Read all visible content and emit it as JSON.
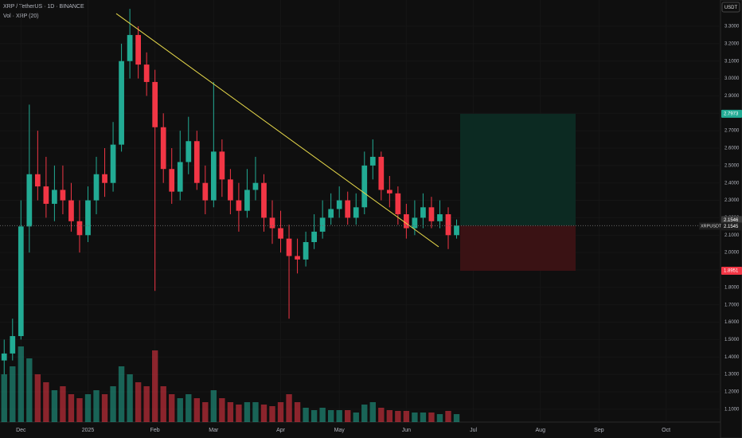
{
  "chart_data": {
    "type": "candlestick",
    "title": "XRP / TetherUS · 1D · BINANCE",
    "subtitle": "Vol · XRP (20)",
    "currency": "USDT",
    "symbol": "XRPUSDT",
    "up_color": "#22ab94",
    "down_color": "#f23645",
    "categories": [
      null,
      null,
      "Dec",
      null,
      null,
      null,
      null,
      null,
      null,
      null,
      "2025",
      null,
      null,
      null,
      null,
      null,
      null,
      null,
      "Feb",
      null,
      null,
      null,
      null,
      null,
      null,
      "Mar",
      null,
      null,
      null,
      null,
      null,
      null,
      null,
      "Apr",
      null,
      null,
      null,
      null,
      null,
      null,
      "May",
      null,
      null,
      null,
      null,
      null,
      null,
      null,
      "Jun",
      null,
      null,
      null,
      null,
      null,
      null,
      null,
      "Jul",
      null,
      null,
      null,
      null,
      null,
      null,
      null,
      "Aug",
      null,
      null,
      null,
      null,
      null,
      null,
      "Sep",
      null,
      null,
      null,
      null,
      null,
      null,
      null,
      "Oct",
      null,
      null,
      null,
      null,
      null,
      null
    ],
    "open": [
      1.38,
      1.42,
      1.52,
      2.15,
      2.45,
      2.38,
      2.28,
      2.36,
      2.3,
      2.18,
      2.1,
      2.3,
      2.45,
      2.4,
      2.62,
      3.1,
      3.25,
      3.08,
      2.98,
      2.72,
      2.48,
      2.35,
      2.52,
      2.64,
      2.4,
      2.3,
      2.58,
      2.42,
      2.3,
      2.24,
      2.36,
      2.4,
      2.2,
      2.14,
      2.08,
      1.98,
      1.96,
      2.06,
      2.12,
      2.2,
      2.25,
      2.3,
      2.2,
      2.26,
      2.5,
      2.55,
      2.36,
      2.34,
      2.22,
      2.14,
      2.2,
      2.26,
      2.18,
      2.22,
      2.1,
      null,
      null,
      null,
      null,
      null,
      null,
      null,
      null,
      null,
      null,
      null,
      null,
      null,
      null,
      null,
      null,
      null,
      null,
      null,
      null,
      null,
      null,
      null,
      null,
      null,
      null,
      null,
      null,
      null,
      null,
      null
    ],
    "high": [
      1.5,
      1.62,
      2.3,
      2.85,
      2.7,
      2.55,
      2.5,
      2.5,
      2.4,
      2.3,
      2.38,
      2.55,
      2.6,
      2.75,
      3.2,
      3.4,
      3.3,
      3.15,
      3.05,
      2.8,
      2.6,
      2.7,
      2.78,
      2.7,
      2.5,
      2.98,
      2.65,
      2.48,
      2.4,
      2.48,
      2.55,
      2.45,
      2.3,
      2.24,
      2.16,
      2.08,
      2.12,
      2.22,
      2.3,
      2.34,
      2.38,
      2.35,
      2.34,
      2.58,
      2.65,
      2.58,
      2.44,
      2.38,
      2.28,
      2.3,
      2.34,
      2.32,
      2.3,
      2.26,
      2.19,
      null,
      null,
      null,
      null,
      null,
      null,
      null,
      null,
      null,
      null,
      null,
      null,
      null,
      null,
      null,
      null,
      null,
      null,
      null,
      null,
      null,
      null,
      null,
      null,
      null,
      null,
      null,
      null,
      null,
      null,
      null
    ],
    "low": [
      1.3,
      1.38,
      1.5,
      2.0,
      2.3,
      2.2,
      2.18,
      2.22,
      2.12,
      2.0,
      2.06,
      2.22,
      2.32,
      2.35,
      2.58,
      3.0,
      3.0,
      2.9,
      1.78,
      2.4,
      2.28,
      2.3,
      2.45,
      2.36,
      2.22,
      2.26,
      2.32,
      2.22,
      2.12,
      2.2,
      2.3,
      2.12,
      2.05,
      2.0,
      1.62,
      1.88,
      1.92,
      2.02,
      2.08,
      2.16,
      2.2,
      2.16,
      2.16,
      2.22,
      2.42,
      2.3,
      2.26,
      2.16,
      2.08,
      2.1,
      2.14,
      2.14,
      2.14,
      2.02,
      2.08,
      null,
      null,
      null,
      null,
      null,
      null,
      null,
      null,
      null,
      null,
      null,
      null,
      null,
      null,
      null,
      null,
      null,
      null,
      null,
      null,
      null,
      null,
      null,
      null,
      null,
      null,
      null,
      null,
      null,
      null,
      null
    ],
    "close": [
      1.42,
      1.52,
      2.15,
      2.45,
      2.38,
      2.28,
      2.36,
      2.3,
      2.18,
      2.1,
      2.3,
      2.45,
      2.4,
      2.62,
      3.1,
      3.25,
      3.08,
      2.98,
      2.72,
      2.48,
      2.35,
      2.52,
      2.64,
      2.4,
      2.3,
      2.58,
      2.42,
      2.3,
      2.24,
      2.36,
      2.4,
      2.2,
      2.14,
      2.08,
      1.98,
      1.96,
      2.06,
      2.12,
      2.2,
      2.25,
      2.3,
      2.2,
      2.26,
      2.5,
      2.55,
      2.36,
      2.34,
      2.22,
      2.14,
      2.2,
      2.26,
      2.18,
      2.22,
      2.1,
      2.155,
      null,
      null,
      null,
      null,
      null,
      null,
      null,
      null,
      null,
      null,
      null,
      null,
      null,
      null,
      null,
      null,
      null,
      null,
      null,
      null,
      null,
      null,
      null,
      null,
      null,
      null,
      null,
      null,
      null,
      null,
      null
    ],
    "volume": [
      60,
      70,
      95,
      80,
      60,
      50,
      40,
      45,
      35,
      30,
      35,
      40,
      35,
      45,
      70,
      60,
      50,
      45,
      90,
      45,
      35,
      30,
      35,
      30,
      25,
      40,
      30,
      25,
      22,
      25,
      25,
      22,
      20,
      25,
      35,
      25,
      18,
      15,
      18,
      15,
      15,
      15,
      12,
      22,
      25,
      18,
      15,
      14,
      14,
      12,
      12,
      12,
      10,
      14,
      10,
      null,
      null,
      null,
      null,
      null,
      null,
      null,
      null,
      null,
      null,
      null,
      null,
      null,
      null,
      null,
      null,
      null,
      null,
      null,
      null,
      null,
      null,
      null,
      null,
      null,
      null,
      null,
      null,
      null,
      null,
      null
    ],
    "ylim": [
      1.026,
      3.451
    ],
    "yticks": [
      {
        "value": 1.1,
        "label": "1.1000"
      },
      {
        "value": 1.2,
        "label": "1.2000"
      },
      {
        "value": 1.3,
        "label": "1.3000"
      },
      {
        "value": 1.4,
        "label": "1.4000"
      },
      {
        "value": 1.5,
        "label": "1.5000"
      },
      {
        "value": 1.6,
        "label": "1.6000"
      },
      {
        "value": 1.7,
        "label": "1.7000"
      },
      {
        "value": 1.8,
        "label": "1.8000"
      },
      {
        "value": 1.9,
        "label": "1.9000"
      },
      {
        "value": 2.0,
        "label": "2.0000"
      },
      {
        "value": 2.1,
        "label": "2.1000"
      },
      {
        "value": 2.2,
        "label": "2.2000"
      },
      {
        "value": 2.3,
        "label": "2.3000"
      },
      {
        "value": 2.4,
        "label": "2.4000"
      },
      {
        "value": 2.5,
        "label": "2.5000"
      },
      {
        "value": 2.6,
        "label": "2.6000"
      },
      {
        "value": 2.7,
        "label": "2.7000"
      },
      {
        "value": 2.8,
        "label": "2.8000"
      },
      {
        "value": 2.9,
        "label": "2.9000"
      },
      {
        "value": 3.0,
        "label": "3.0000"
      },
      {
        "value": 3.1,
        "label": "3.1000"
      },
      {
        "value": 3.2,
        "label": "3.2000"
      },
      {
        "value": 3.3,
        "label": "3.3000"
      }
    ],
    "trendline": {
      "start": 3.373,
      "end": 2.033,
      "color": "#e6d84a"
    },
    "position": {
      "target": 2.7973,
      "entry": 2.1546,
      "stop": 1.8951
    },
    "last_price": 2.1545
  }
}
